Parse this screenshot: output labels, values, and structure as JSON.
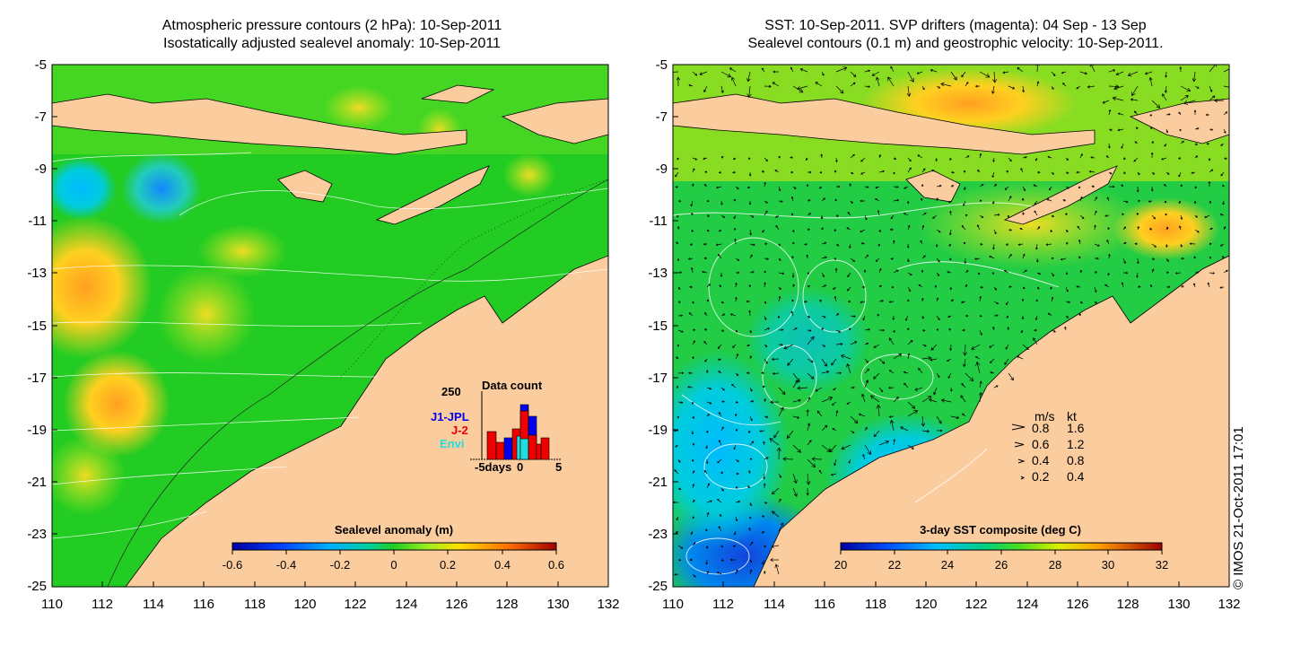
{
  "left_panel": {
    "title_line1": "Atmospheric pressure contours (2 hPa): 10-Sep-2011",
    "title_line2": "Isostatically adjusted sealevel anomaly: 10-Sep-2011",
    "colorbar": {
      "label": "Sealevel anomaly (m)",
      "ticks": [
        "-0.6",
        "-0.4",
        "-0.2",
        "0",
        "0.2",
        "0.4",
        "0.6"
      ]
    },
    "data_count": {
      "title": "Data count",
      "ymax_label": "250",
      "satellites": [
        {
          "name": "J1-JPL",
          "color": "#0000ee"
        },
        {
          "name": "J-2",
          "color": "#ee0000"
        },
        {
          "name": "Envi",
          "color": "#22dddd"
        }
      ],
      "x_label_left": "-5days",
      "x_label_mid": "0",
      "x_label_right": "5"
    }
  },
  "right_panel": {
    "title_line1": "SST: 10-Sep-2011. SVP drifters (magenta): 04 Sep - 13 Sep",
    "title_line2": "Sealevel contours (0.1 m) and geostrophic velocity: 10-Sep-2011.",
    "colorbar": {
      "label": "3-day SST composite (deg C)",
      "ticks": [
        "20",
        "22",
        "24",
        "26",
        "28",
        "30",
        "32"
      ]
    },
    "speed_legend": {
      "header_ms": "m/s",
      "header_kt": "kt",
      "rows": [
        {
          "ms": "0.8",
          "kt": "1.6"
        },
        {
          "ms": "0.6",
          "kt": "1.2"
        },
        {
          "ms": "0.4",
          "kt": "0.8"
        },
        {
          "ms": "0.2",
          "kt": "0.4"
        }
      ]
    }
  },
  "axes": {
    "lat_labels": [
      "-5",
      "-7",
      "-9",
      "-11",
      "-13",
      "-15",
      "-17",
      "-19",
      "-21",
      "-23",
      "-25"
    ],
    "lon_labels": [
      "110",
      "112",
      "114",
      "116",
      "118",
      "120",
      "122",
      "124",
      "126",
      "128",
      "130",
      "132"
    ]
  },
  "credit": "© IMOS 21-Oct-2011 17:01",
  "colors": {
    "land": "#fbcc9e",
    "ocean_green": "#22cc22",
    "ocean_bright": "#66dd22"
  }
}
